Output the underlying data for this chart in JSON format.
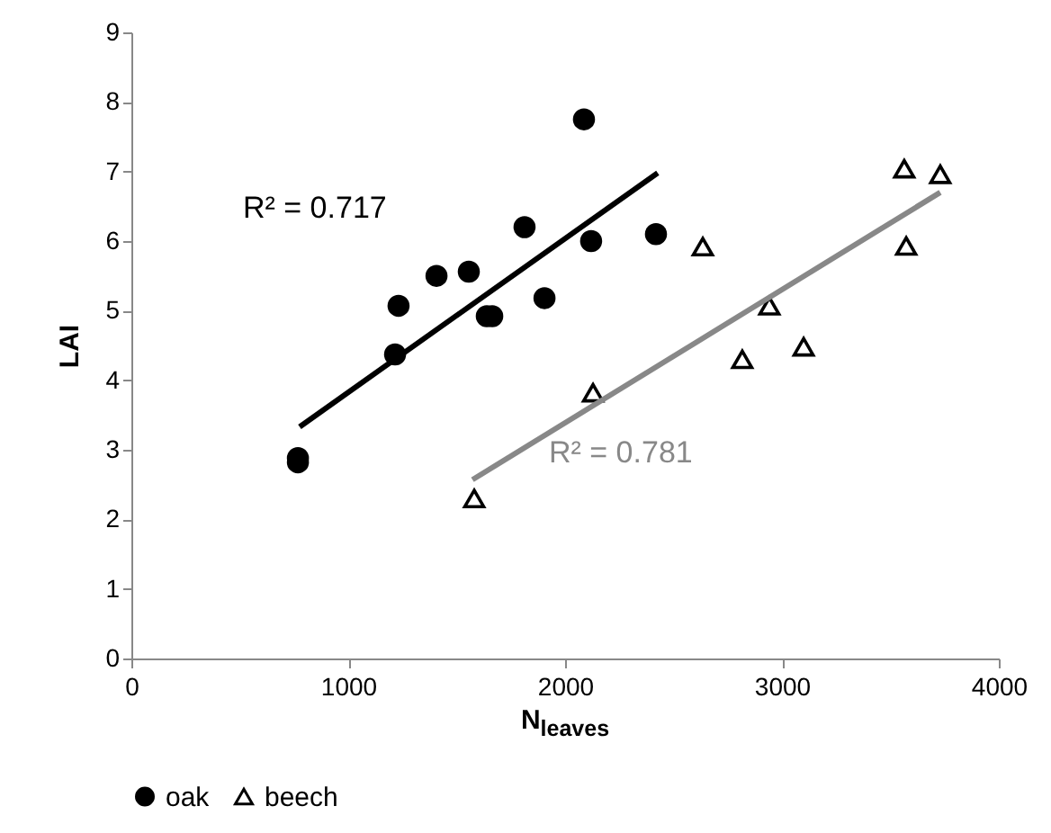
{
  "chart_data": {
    "type": "scatter",
    "xlabel": "N$_{leaves}$",
    "ylabel": "LAI",
    "xlim": [
      0,
      4000
    ],
    "xticks": [
      0,
      1000,
      2000,
      3000,
      4000
    ],
    "ylim": [
      0,
      9
    ],
    "yticks": [
      0,
      1,
      2,
      3,
      4,
      5,
      6,
      7,
      8,
      9
    ],
    "grid": false,
    "legend": "bottom",
    "annotations": [
      "R² = 0.717",
      "R² = 0.781"
    ],
    "series": [
      {
        "name": "oak",
        "color": "#000000",
        "marker": "circle",
        "x": [
          768,
          768,
          1216,
          1232,
          1407,
          1556,
          1639,
          1664,
          1813,
          1905,
          2087,
          2120,
          2419
        ],
        "values": [
          2.82,
          2.88,
          4.37,
          5.07,
          5.5,
          5.56,
          4.92,
          4.92,
          6.2,
          5.18,
          7.75,
          6.0,
          6.1
        ]
      },
      {
        "name": "beech",
        "color": "#000000",
        "marker": "triangle",
        "x": [
          1581,
          2129,
          2635,
          2817,
          2942,
          3100,
          3564,
          3573,
          3730
        ],
        "values": [
          2.3,
          3.82,
          5.92,
          4.3,
          5.07,
          4.48,
          7.04,
          5.93,
          6.96
        ]
      },
      {
        "type": "line",
        "color": "#000000",
        "x": [
          776,
          2427
        ],
        "values": [
          3.33,
          6.98
        ]
      },
      {
        "type": "line",
        "color": "#888888",
        "x": [
          1573,
          3730
        ],
        "values": [
          2.57,
          6.7
        ]
      }
    ]
  }
}
